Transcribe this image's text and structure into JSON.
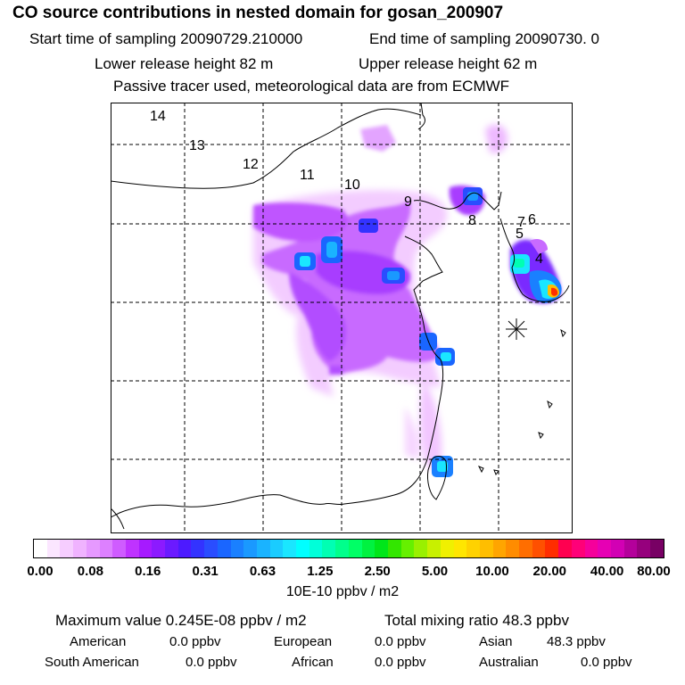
{
  "header": {
    "title": "CO  source contributions in nested domain for gosan_200907",
    "start_time": "Start time of sampling 20090729.210000",
    "end_time": "End time of sampling 20090730.     0",
    "lower_height": "Lower release height   82 m",
    "upper_height": "Upper release height   62 m",
    "tracer_note": "Passive tracer used, meteorological data are from ECMWF"
  },
  "map": {
    "trajectory_labels": [
      "14",
      "13",
      "12",
      "11",
      "10",
      "9",
      "8",
      "7",
      "6",
      "5",
      "4"
    ],
    "receptor_marker": "asterisk-icon"
  },
  "colorbar": {
    "ticks": [
      "0.00",
      "0.08",
      "0.16",
      "0.31",
      "0.63",
      "1.25",
      "2.50",
      "5.00",
      "10.00",
      "20.00",
      "40.00",
      "80.00"
    ],
    "units": "10E-10 ppbv / m2",
    "colors": [
      "#ffffff",
      "#fbe6ff",
      "#f6cdff",
      "#f0b3ff",
      "#e699ff",
      "#dd80ff",
      "#cf5cff",
      "#bf33ff",
      "#a61aff",
      "#8c1aff",
      "#6b1aff",
      "#4d1aff",
      "#3333ff",
      "#2a4dff",
      "#1a66ff",
      "#1a80ff",
      "#1a99ff",
      "#1ab3ff",
      "#1accff",
      "#1ae6ff",
      "#00ffff",
      "#00ffd9",
      "#00ffb3",
      "#00ff8c",
      "#00ff66",
      "#00f240",
      "#00e61a",
      "#33e600",
      "#66f000",
      "#99f000",
      "#c8f000",
      "#f0f000",
      "#ffe600",
      "#ffd200",
      "#ffbe00",
      "#ffa500",
      "#ff8c00",
      "#ff6e00",
      "#ff5000",
      "#ff2d00",
      "#ff0050",
      "#ff0078",
      "#f5009b",
      "#e600b4",
      "#d200b4",
      "#b4009b",
      "#96007d",
      "#780064"
    ]
  },
  "stats": {
    "max_value": "Maximum value  0.245E-08 ppbv / m2",
    "total_mixing": "Total mixing ratio       48.3 ppbv",
    "american_label": "American",
    "american_value": "0.0 ppbv",
    "european_label": "European",
    "european_value": "0.0 ppbv",
    "asian_label": "Asian",
    "asian_value": "48.3 ppbv",
    "south_american_label": "South American",
    "south_american_value": "0.0 ppbv",
    "african_label": "African",
    "african_value": "0.0 ppbv",
    "australian_label": "Australian",
    "australian_value": "0.0 ppbv"
  }
}
